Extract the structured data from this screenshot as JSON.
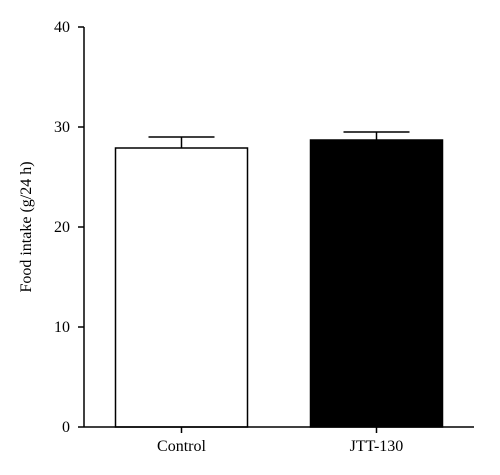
{
  "chart_data": {
    "type": "bar",
    "categories": [
      "Control",
      "JTT-130"
    ],
    "values": [
      27.9,
      28.7
    ],
    "errors": [
      1.1,
      0.8
    ],
    "bar_colors": [
      "#ffffff",
      "#000000"
    ],
    "xlabel": "",
    "ylabel": "Food intake (g/24 h)",
    "ylim": [
      0,
      40
    ],
    "yticks": [
      0,
      10,
      20,
      30,
      40
    ],
    "grid": false
  }
}
